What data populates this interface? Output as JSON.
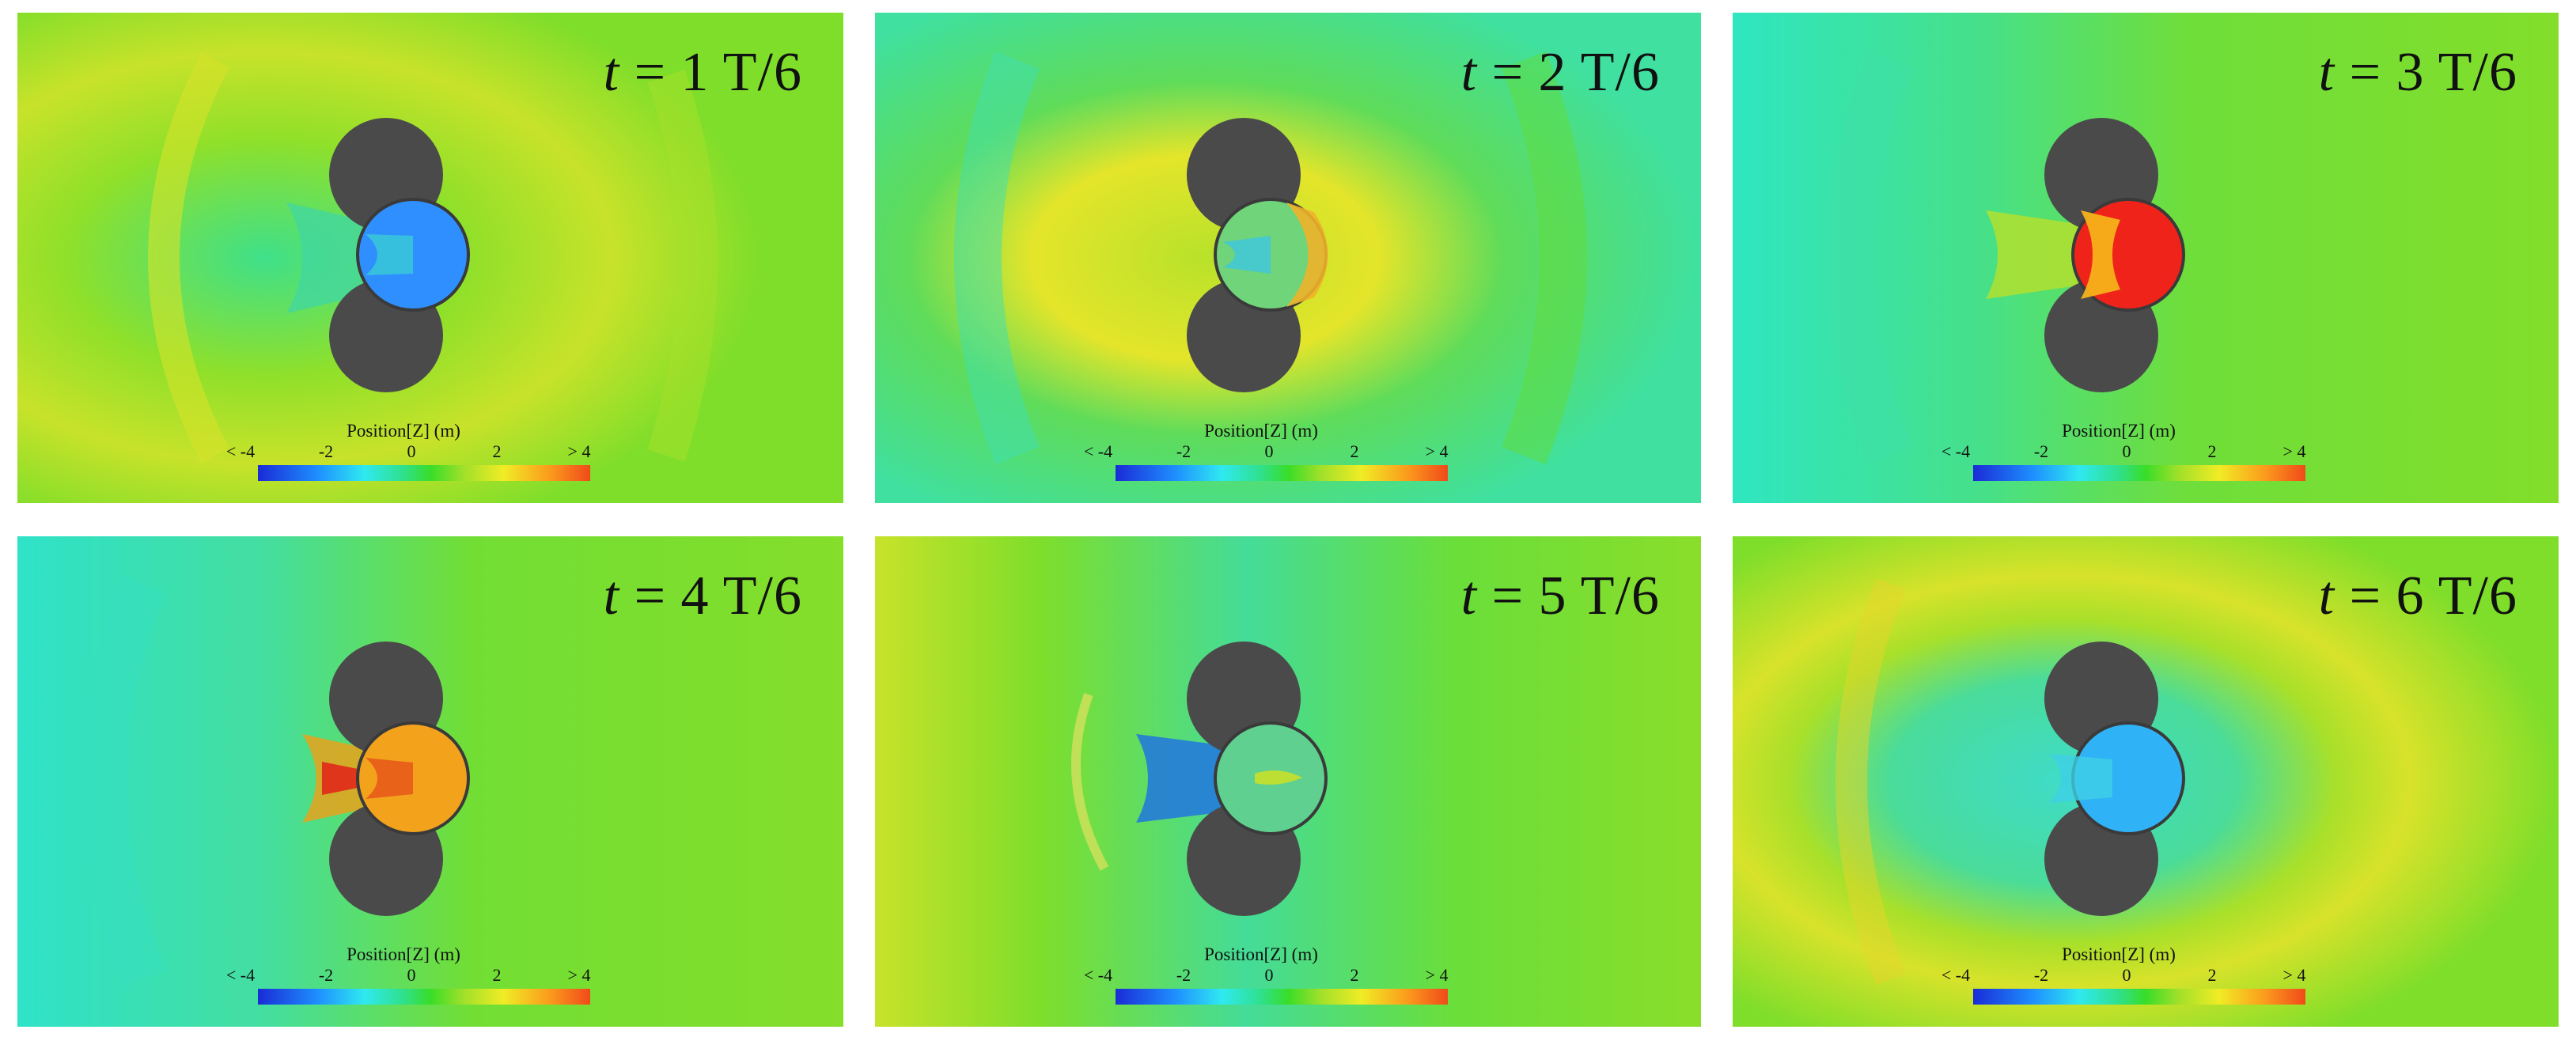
{
  "panels": [
    {
      "time_label_prefix": "t",
      "time_label_value": "= 1 T/6",
      "colorbar": {
        "title": "Position[Z] (m)",
        "ticks": [
          "< -4",
          "-2",
          "0",
          "2",
          "> 4"
        ]
      }
    },
    {
      "time_label_prefix": "t",
      "time_label_value": "= 2 T/6",
      "colorbar": {
        "title": "Position[Z] (m)",
        "ticks": [
          "< -4",
          "-2",
          "0",
          "2",
          "> 4"
        ]
      }
    },
    {
      "time_label_prefix": "t",
      "time_label_value": "= 3 T/6",
      "colorbar": {
        "title": "Position[Z] (m)",
        "ticks": [
          "< -4",
          "-2",
          "0",
          "2",
          "> 4"
        ]
      }
    },
    {
      "time_label_prefix": "t",
      "time_label_value": "= 4 T/6",
      "colorbar": {
        "title": "Position[Z] (m)",
        "ticks": [
          "< -4",
          "-2",
          "0",
          "2",
          "> 4"
        ]
      }
    },
    {
      "time_label_prefix": "t",
      "time_label_value": "= 5 T/6",
      "colorbar": {
        "title": "Position[Z] (m)",
        "ticks": [
          "< -4",
          "-2",
          "0",
          "2",
          "> 4"
        ]
      }
    },
    {
      "time_label_prefix": "t",
      "time_label_value": "= 6 T/6",
      "colorbar": {
        "title": "Position[Z] (m)",
        "ticks": [
          "< -4",
          "-2",
          "0",
          "2",
          "> 4"
        ]
      }
    }
  ],
  "colors": {
    "cylinder": "#4a4a4a",
    "field_base": "#7ede2a",
    "buoy_fill": [
      "#2f8fff",
      "#6fd47a",
      "#f0231a",
      "#f3a21c",
      "#5fd08f",
      "#2fb3f6"
    ]
  }
}
